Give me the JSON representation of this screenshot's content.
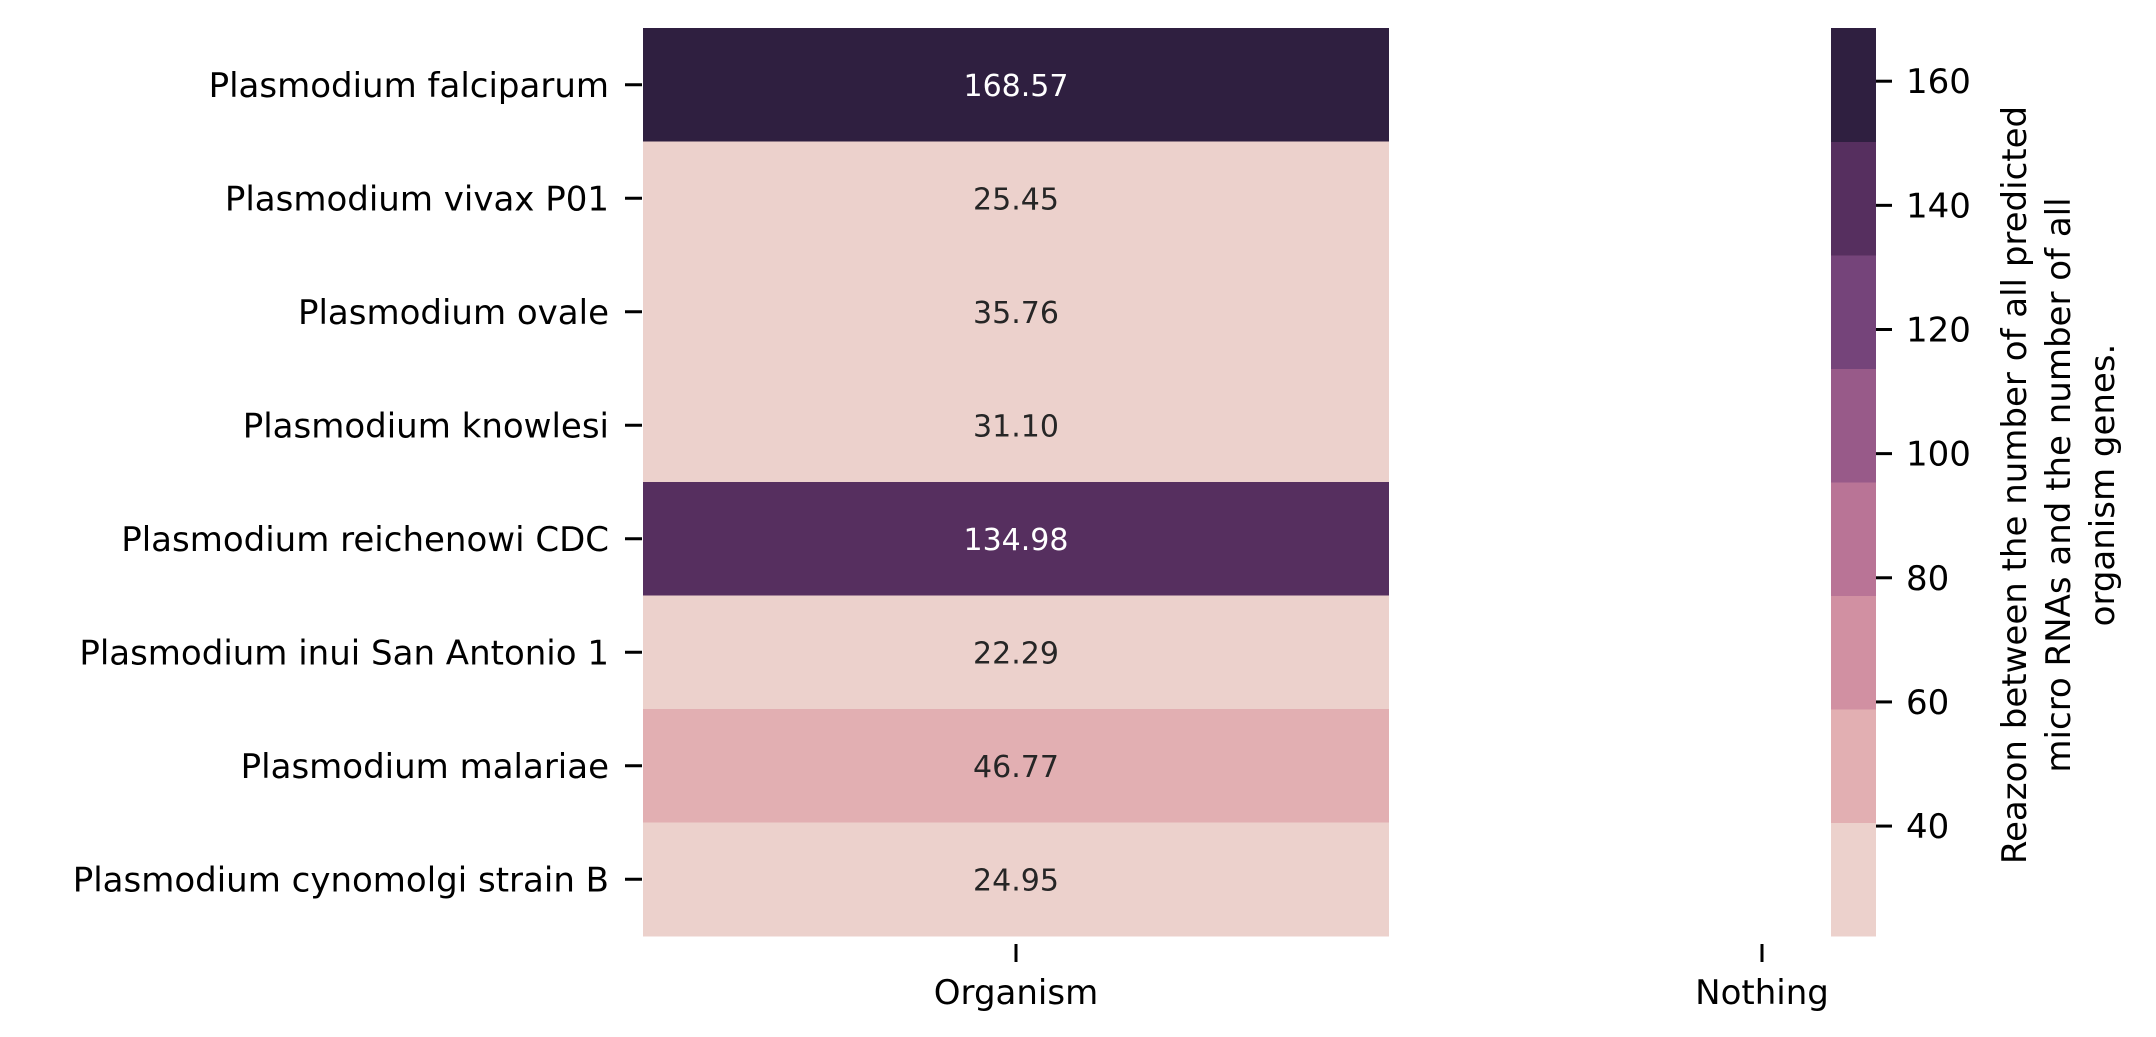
{
  "chart_data": {
    "type": "heatmap",
    "x_categories": [
      "Organism",
      "Nothing"
    ],
    "y_categories": [
      "Plasmodium falciparum",
      "Plasmodium vivax P01",
      "Plasmodium ovale",
      "Plasmodium knowlesi",
      "Plasmodium reichenowi CDC",
      "Plasmodium inui San Antonio 1",
      "Plasmodium malariae",
      "Plasmodium cynomolgi strain B"
    ],
    "values": [
      168.57,
      25.45,
      35.76,
      31.1,
      134.98,
      22.29,
      46.77,
      24.95
    ],
    "value_labels": [
      "168.57",
      "25.45",
      "35.76",
      "31.10",
      "134.98",
      "22.29",
      "46.77",
      "24.95"
    ],
    "colorbar": {
      "label_lines": [
        "Reazon between the number of all predicted",
        "micro RNAs and the number of all",
        "organism genes."
      ],
      "range": [
        22.29,
        168.57
      ],
      "ticks": [
        40,
        60,
        80,
        100,
        120,
        140,
        160
      ],
      "tick_labels": [
        "40",
        "60",
        "80",
        "100",
        "120",
        "140",
        "160"
      ],
      "colors": [
        "#ecd1cc",
        "#e2afb2",
        "#d190a2",
        "#b97496",
        "#985a89",
        "#75447a",
        "#562f5f",
        "#2f1f40"
      ]
    },
    "legend": "none",
    "grid": false
  }
}
